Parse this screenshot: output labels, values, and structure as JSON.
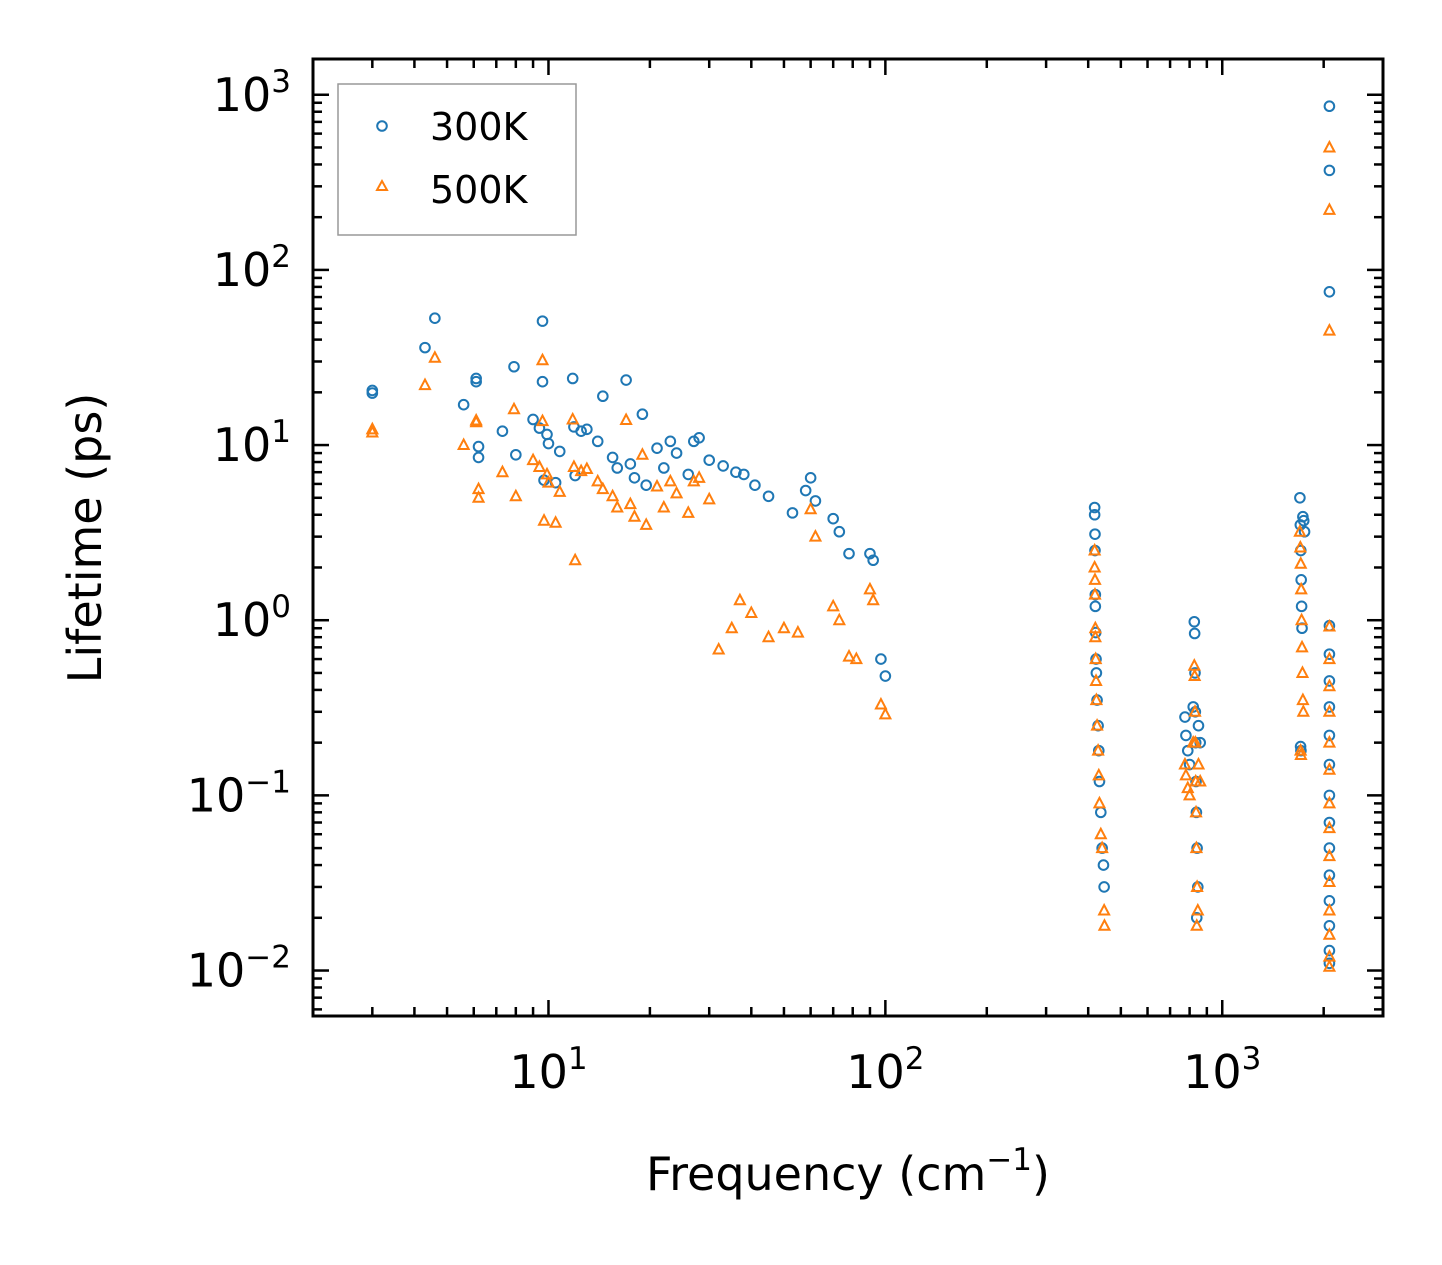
{
  "chart_data": {
    "type": "scatter",
    "title": "",
    "xlabel": "Frequency (cm",
    "xlabel_sup": "−1",
    "xlabel_tail": ")",
    "ylabel": "Lifetime (ps)",
    "xscale": "log",
    "yscale": "log",
    "xlim": [
      2.0,
      3000
    ],
    "ylim": [
      0.0055,
      1600
    ],
    "x_ticks": [
      {
        "value": 10,
        "base": "10",
        "exp": "1"
      },
      {
        "value": 100,
        "base": "10",
        "exp": "2"
      },
      {
        "value": 1000,
        "base": "10",
        "exp": "3"
      }
    ],
    "y_ticks": [
      {
        "value": 0.01,
        "base": "10",
        "exp": "−2"
      },
      {
        "value": 0.1,
        "base": "10",
        "exp": "−1"
      },
      {
        "value": 1,
        "base": "10",
        "exp": "0"
      },
      {
        "value": 10,
        "base": "10",
        "exp": "1"
      },
      {
        "value": 100,
        "base": "10",
        "exp": "2"
      },
      {
        "value": 1000,
        "base": "10",
        "exp": "3"
      }
    ],
    "legend_position": "top-left",
    "series": [
      {
        "name": "300K",
        "marker": "circle",
        "color": "#1f77b4",
        "points": [
          [
            3.0,
            20.5
          ],
          [
            3.0,
            19.8
          ],
          [
            4.3,
            36
          ],
          [
            4.6,
            53
          ],
          [
            5.6,
            17
          ],
          [
            6.1,
            23
          ],
          [
            6.1,
            24
          ],
          [
            6.2,
            9.8
          ],
          [
            6.2,
            8.5
          ],
          [
            7.3,
            12
          ],
          [
            7.9,
            28
          ],
          [
            8.0,
            8.8
          ],
          [
            9.0,
            14
          ],
          [
            9.4,
            12.5
          ],
          [
            9.6,
            51
          ],
          [
            9.6,
            23
          ],
          [
            9.7,
            6.3
          ],
          [
            9.9,
            11.5
          ],
          [
            10.0,
            10.2
          ],
          [
            10.5,
            6.1
          ],
          [
            10.8,
            9.2
          ],
          [
            11.8,
            24
          ],
          [
            11.9,
            12.7
          ],
          [
            12.0,
            6.7
          ],
          [
            12.5,
            12
          ],
          [
            13.0,
            12.3
          ],
          [
            14.0,
            10.5
          ],
          [
            14.5,
            19
          ],
          [
            15.5,
            8.5
          ],
          [
            16.0,
            7.4
          ],
          [
            17.0,
            23.5
          ],
          [
            17.5,
            7.8
          ],
          [
            18.0,
            6.5
          ],
          [
            19.0,
            15
          ],
          [
            19.5,
            5.9
          ],
          [
            21,
            9.6
          ],
          [
            22,
            7.4
          ],
          [
            23,
            10.5
          ],
          [
            24,
            9
          ],
          [
            26,
            6.8
          ],
          [
            27,
            10.5
          ],
          [
            28,
            11
          ],
          [
            30,
            8.2
          ],
          [
            33,
            7.6
          ],
          [
            36,
            7
          ],
          [
            38,
            6.8
          ],
          [
            41,
            5.9
          ],
          [
            45,
            5.1
          ],
          [
            53,
            4.1
          ],
          [
            58,
            5.5
          ],
          [
            60,
            6.5
          ],
          [
            62,
            4.8
          ],
          [
            70,
            3.8
          ],
          [
            73,
            3.2
          ],
          [
            78,
            2.4
          ],
          [
            90,
            2.4
          ],
          [
            92,
            2.2
          ],
          [
            100,
            0.48
          ],
          [
            97,
            0.6
          ],
          [
            418,
            4.4
          ],
          [
            418,
            4
          ],
          [
            419,
            3.1
          ],
          [
            419,
            2.5
          ],
          [
            420,
            1.4
          ],
          [
            420,
            1.2
          ],
          [
            421,
            0.85
          ],
          [
            422,
            0.6
          ],
          [
            423,
            0.5
          ],
          [
            425,
            0.35
          ],
          [
            428,
            0.25
          ],
          [
            430,
            0.18
          ],
          [
            432,
            0.12
          ],
          [
            436,
            0.08
          ],
          [
            440,
            0.05
          ],
          [
            446,
            0.03
          ],
          [
            444,
            0.04
          ],
          [
            775,
            0.28
          ],
          [
            780,
            0.22
          ],
          [
            790,
            0.18
          ],
          [
            800,
            0.15
          ],
          [
            820,
            0.32
          ],
          [
            826,
            0.98
          ],
          [
            828,
            0.84
          ],
          [
            830,
            0.5
          ],
          [
            832,
            0.3
          ],
          [
            834,
            0.2
          ],
          [
            836,
            0.12
          ],
          [
            838,
            0.08
          ],
          [
            842,
            0.05
          ],
          [
            846,
            0.03
          ],
          [
            840,
            0.02
          ],
          [
            850,
            0.25
          ],
          [
            860,
            0.2
          ],
          [
            1700,
            5
          ],
          [
            1705,
            3.5
          ],
          [
            1710,
            2.5
          ],
          [
            1715,
            1.7
          ],
          [
            1720,
            1.2
          ],
          [
            1725,
            0.9
          ],
          [
            1735,
            3.9
          ],
          [
            1745,
            3.7
          ],
          [
            1755,
            3.2
          ],
          [
            1708,
            0.19
          ],
          [
            1712,
            0.18
          ],
          [
            2080,
            860
          ],
          [
            2080,
            370
          ],
          [
            2080,
            75
          ],
          [
            2080,
            0.93
          ],
          [
            2080,
            0.64
          ],
          [
            2080,
            0.45
          ],
          [
            2080,
            0.32
          ],
          [
            2080,
            0.22
          ],
          [
            2080,
            0.15
          ],
          [
            2080,
            0.1
          ],
          [
            2080,
            0.07
          ],
          [
            2080,
            0.05
          ],
          [
            2080,
            0.035
          ],
          [
            2080,
            0.025
          ],
          [
            2080,
            0.018
          ],
          [
            2080,
            0.013
          ],
          [
            2080,
            0.011
          ]
        ]
      },
      {
        "name": "500K",
        "marker": "triangle",
        "color": "#ff7f0e",
        "points": [
          [
            3.0,
            12.3
          ],
          [
            3.0,
            11.8
          ],
          [
            4.3,
            22
          ],
          [
            4.6,
            31.5
          ],
          [
            5.6,
            10
          ],
          [
            6.1,
            13.5
          ],
          [
            6.1,
            13.8
          ],
          [
            6.2,
            5.6
          ],
          [
            6.2,
            5.0
          ],
          [
            7.3,
            7
          ],
          [
            7.9,
            16
          ],
          [
            8.0,
            5.1
          ],
          [
            9.0,
            8.2
          ],
          [
            9.4,
            7.5
          ],
          [
            9.6,
            30.5
          ],
          [
            9.6,
            13.7
          ],
          [
            9.7,
            3.7
          ],
          [
            9.9,
            6.8
          ],
          [
            10.0,
            6.1
          ],
          [
            10.5,
            3.6
          ],
          [
            10.8,
            5.4
          ],
          [
            11.8,
            14
          ],
          [
            11.9,
            7.5
          ],
          [
            12.0,
            2.2
          ],
          [
            12.5,
            7.1
          ],
          [
            13.0,
            7.3
          ],
          [
            14.0,
            6.2
          ],
          [
            14.5,
            5.6
          ],
          [
            15.5,
            5.1
          ],
          [
            16.0,
            4.4
          ],
          [
            17.0,
            13.9
          ],
          [
            17.5,
            4.6
          ],
          [
            18.0,
            3.9
          ],
          [
            19.0,
            8.8
          ],
          [
            19.5,
            3.5
          ],
          [
            21,
            5.8
          ],
          [
            22,
            4.4
          ],
          [
            23,
            6.2
          ],
          [
            24,
            5.3
          ],
          [
            26,
            4.1
          ],
          [
            27,
            6.2
          ],
          [
            28,
            6.5
          ],
          [
            30,
            4.9
          ],
          [
            32,
            0.68
          ],
          [
            35,
            0.9
          ],
          [
            37,
            1.3
          ],
          [
            40,
            1.1
          ],
          [
            45,
            0.8
          ],
          [
            50,
            0.9
          ],
          [
            55,
            0.85
          ],
          [
            60,
            4.3
          ],
          [
            62,
            3.0
          ],
          [
            70,
            1.2
          ],
          [
            73,
            1.0
          ],
          [
            78,
            0.62
          ],
          [
            82,
            0.6
          ],
          [
            90,
            1.5
          ],
          [
            92,
            1.3
          ],
          [
            100,
            0.29
          ],
          [
            97,
            0.33
          ],
          [
            418,
            2.5
          ],
          [
            418,
            2.0
          ],
          [
            419,
            1.7
          ],
          [
            419,
            1.4
          ],
          [
            420,
            0.9
          ],
          [
            420,
            0.8
          ],
          [
            421,
            0.6
          ],
          [
            422,
            0.45
          ],
          [
            423,
            0.35
          ],
          [
            425,
            0.25
          ],
          [
            428,
            0.18
          ],
          [
            430,
            0.13
          ],
          [
            432,
            0.09
          ],
          [
            436,
            0.06
          ],
          [
            440,
            0.05
          ],
          [
            446,
            0.022
          ],
          [
            447,
            0.018
          ],
          [
            775,
            0.15
          ],
          [
            780,
            0.13
          ],
          [
            790,
            0.11
          ],
          [
            800,
            0.1
          ],
          [
            820,
            0.2
          ],
          [
            826,
            0.55
          ],
          [
            828,
            0.48
          ],
          [
            830,
            0.3
          ],
          [
            832,
            0.2
          ],
          [
            834,
            0.12
          ],
          [
            836,
            0.08
          ],
          [
            838,
            0.05
          ],
          [
            842,
            0.03
          ],
          [
            846,
            0.022
          ],
          [
            840,
            0.018
          ],
          [
            850,
            0.15
          ],
          [
            860,
            0.12
          ],
          [
            1700,
            3.2
          ],
          [
            1705,
            2.6
          ],
          [
            1710,
            2.1
          ],
          [
            1715,
            1.5
          ],
          [
            1720,
            1.0
          ],
          [
            1725,
            0.7
          ],
          [
            1730,
            0.5
          ],
          [
            1735,
            0.35
          ],
          [
            1740,
            0.3
          ],
          [
            1708,
            0.18
          ],
          [
            1712,
            0.17
          ],
          [
            2080,
            500
          ],
          [
            2080,
            220
          ],
          [
            2080,
            45
          ],
          [
            2080,
            0.92
          ],
          [
            2080,
            0.6
          ],
          [
            2080,
            0.42
          ],
          [
            2080,
            0.3
          ],
          [
            2080,
            0.2
          ],
          [
            2080,
            0.14
          ],
          [
            2080,
            0.09
          ],
          [
            2080,
            0.065
          ],
          [
            2080,
            0.045
          ],
          [
            2080,
            0.032
          ],
          [
            2080,
            0.022
          ],
          [
            2080,
            0.016
          ],
          [
            2080,
            0.012
          ],
          [
            2080,
            0.0105
          ]
        ]
      }
    ]
  }
}
